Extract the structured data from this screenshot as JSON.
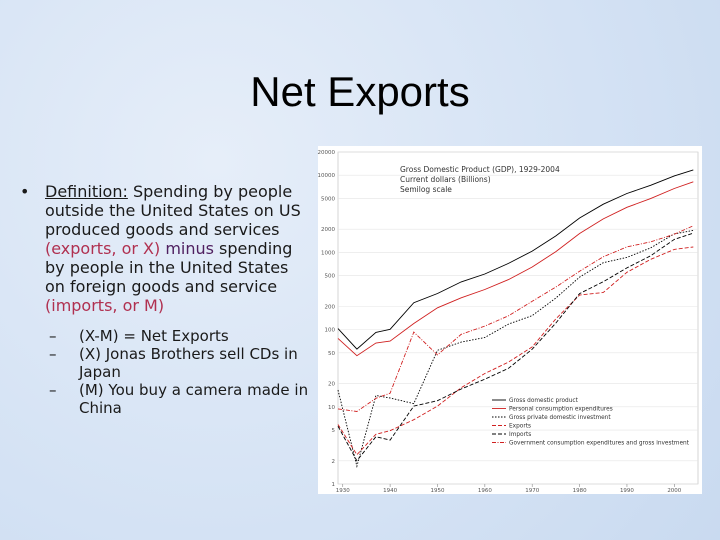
{
  "title": "Net Exports",
  "bullet": {
    "term": "Definition:",
    "segments": [
      {
        "text": " Spending by people outside the United States on US produced goods and services ",
        "color": "#1a1a1a"
      },
      {
        "text": "(exports, or X)",
        "color": "#b03050"
      },
      {
        "text": " minus",
        "color": "#502060"
      },
      {
        "text": " spending by people in the United States on foreign goods and service ",
        "color": "#1a1a1a"
      },
      {
        "text": "(imports, or M)",
        "color": "#b03050"
      }
    ],
    "subitems": [
      "(X-M) = Net Exports",
      "(X) Jonas Brothers sell CDs in Japan",
      "(M) You buy a camera made in China"
    ]
  },
  "chart_data": {
    "type": "line",
    "title": "Gross Domestic Product (GDP), 1929-2004",
    "subtitle": "Current dollars (Billions)",
    "scale_note": "Semilog scale",
    "log_scale": true,
    "x": [
      1929,
      1933,
      1937,
      1940,
      1945,
      1950,
      1955,
      1960,
      1965,
      1970,
      1975,
      1980,
      1985,
      1990,
      1995,
      2000,
      2004
    ],
    "xlim": [
      1929,
      2005
    ],
    "xticks": [
      1930,
      1940,
      1950,
      1960,
      1970,
      1980,
      1990,
      2000
    ],
    "ylim": [
      1,
      20000
    ],
    "yticks": [
      1,
      2,
      5,
      10,
      20,
      50,
      100,
      200,
      500,
      1000,
      2000,
      5000,
      10000,
      20000
    ],
    "legend": "lower right",
    "series": [
      {
        "name": "Gross domestic product",
        "color": "#000000",
        "style": "solid",
        "values": [
          103,
          56,
          92,
          101,
          223,
          294,
          415,
          526,
          720,
          1039,
          1638,
          2790,
          4220,
          5803,
          7398,
          9817,
          11734
        ]
      },
      {
        "name": "Personal consumption expenditures",
        "color": "#d02020",
        "style": "solid",
        "values": [
          77,
          46,
          67,
          71,
          120,
          192,
          258,
          331,
          444,
          648,
          1024,
          1757,
          2720,
          3840,
          4976,
          6739,
          8214
        ]
      },
      {
        "name": "Gross private domestic investment",
        "color": "#000000",
        "style": "dotted",
        "values": [
          16.5,
          1.7,
          14,
          13,
          11,
          54,
          69,
          79,
          118,
          152,
          257,
          479,
          736,
          861,
          1144,
          1736,
          1928
        ]
      },
      {
        "name": "Exports",
        "color": "#d02020",
        "style": "dashed",
        "values": [
          5.9,
          2.4,
          4.4,
          4.9,
          6.8,
          10.2,
          17.7,
          27,
          38,
          59.7,
          138,
          281,
          303,
          552,
          813,
          1096,
          1177
        ]
      },
      {
        "name": "Imports",
        "color": "#000000",
        "style": "dashed",
        "values": [
          5.6,
          2.0,
          4.1,
          3.7,
          10.2,
          12,
          17,
          22.8,
          31.5,
          55.8,
          122,
          293,
          417,
          630,
          904,
          1475,
          1781
        ]
      },
      {
        "name": "Government consumption expenditures and gross investment",
        "color": "#d02020",
        "style": "dashdot",
        "values": [
          9.4,
          8.7,
          12.9,
          15,
          93,
          47,
          87,
          111,
          151,
          233,
          357,
          572,
          878,
          1181,
          1370,
          1722,
          2216
        ]
      }
    ]
  }
}
